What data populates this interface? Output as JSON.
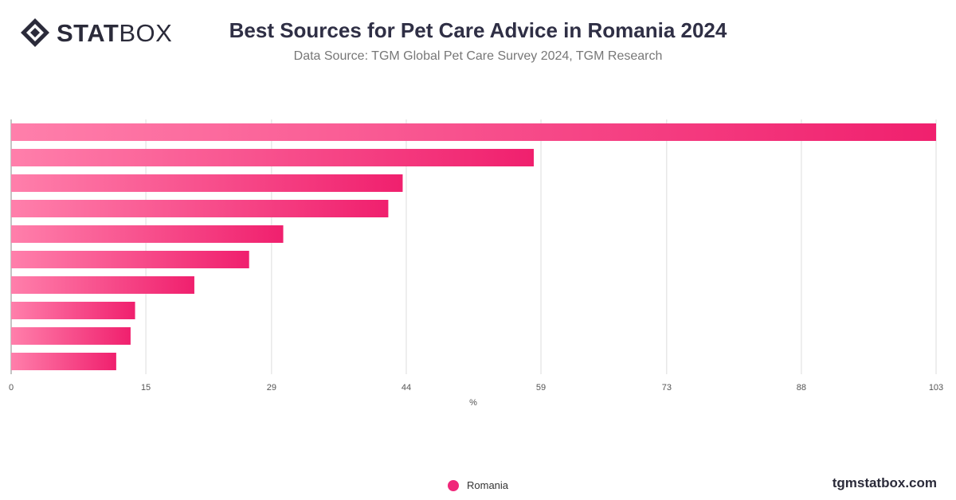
{
  "brand": {
    "logo_bold": "STAT",
    "logo_light": "BOX",
    "site": "tgmstatbox.com"
  },
  "chart_data": {
    "type": "bar",
    "orientation": "horizontal",
    "title": "Best Sources for Pet Care Advice in Romania 2024",
    "subtitle": "Data Source: TGM Global Pet Care Survey 2024, TGM Research",
    "xlabel": "%",
    "xlim": [
      0,
      103
    ],
    "xticks": [
      0,
      15,
      29,
      44,
      59,
      73,
      88,
      103
    ],
    "categories": [
      "",
      "",
      "",
      "",
      "",
      "",
      "",
      "",
      "",
      ""
    ],
    "series": [
      {
        "name": "Romania",
        "color": "#f0287a",
        "values": [
          103,
          58.2,
          43.6,
          42,
          30.3,
          26.5,
          20.4,
          13.8,
          13.3,
          11.7
        ]
      }
    ],
    "grid": true,
    "legend_position": "bottom-center"
  }
}
